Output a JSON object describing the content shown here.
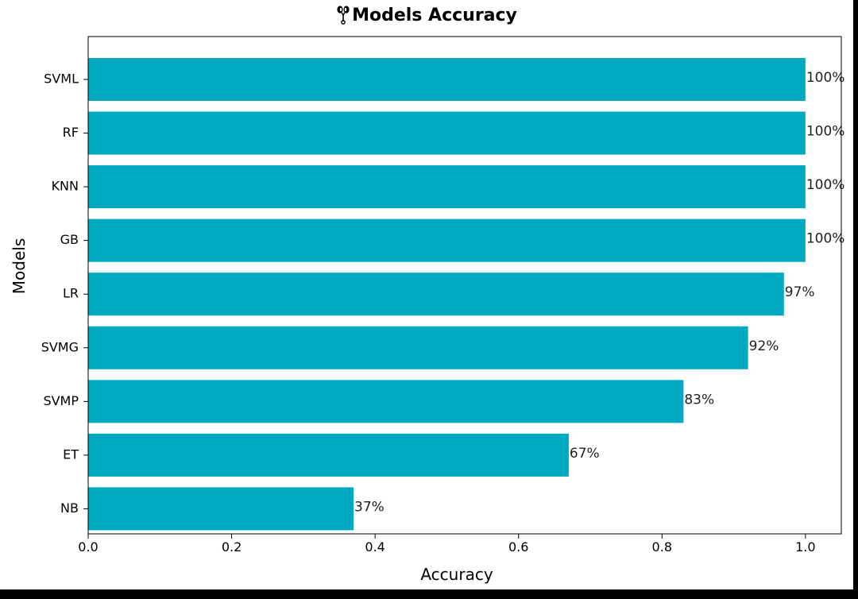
{
  "chart_data": {
    "type": "bar",
    "orientation": "horizontal",
    "title": "Models Accuracy",
    "title_icon": "kidney-icon",
    "xlabel": "Accuracy",
    "ylabel": "Models",
    "categories": [
      "SVML",
      "RF",
      "KNN",
      "GB",
      "LR",
      "SVMG",
      "SVMP",
      "ET",
      "NB"
    ],
    "values": [
      1.0,
      1.0,
      1.0,
      1.0,
      0.97,
      0.92,
      0.83,
      0.67,
      0.37
    ],
    "data_labels": [
      "100%",
      "100%",
      "100%",
      "100%",
      "97%",
      "92%",
      "83%",
      "67%",
      "37%"
    ],
    "xlim": [
      0,
      1.05
    ],
    "xticks": [
      "0.0",
      "0.2",
      "0.4",
      "0.6",
      "0.8",
      "1.0"
    ],
    "bar_color": "#00A9C2",
    "grid": false,
    "legend": "none"
  }
}
